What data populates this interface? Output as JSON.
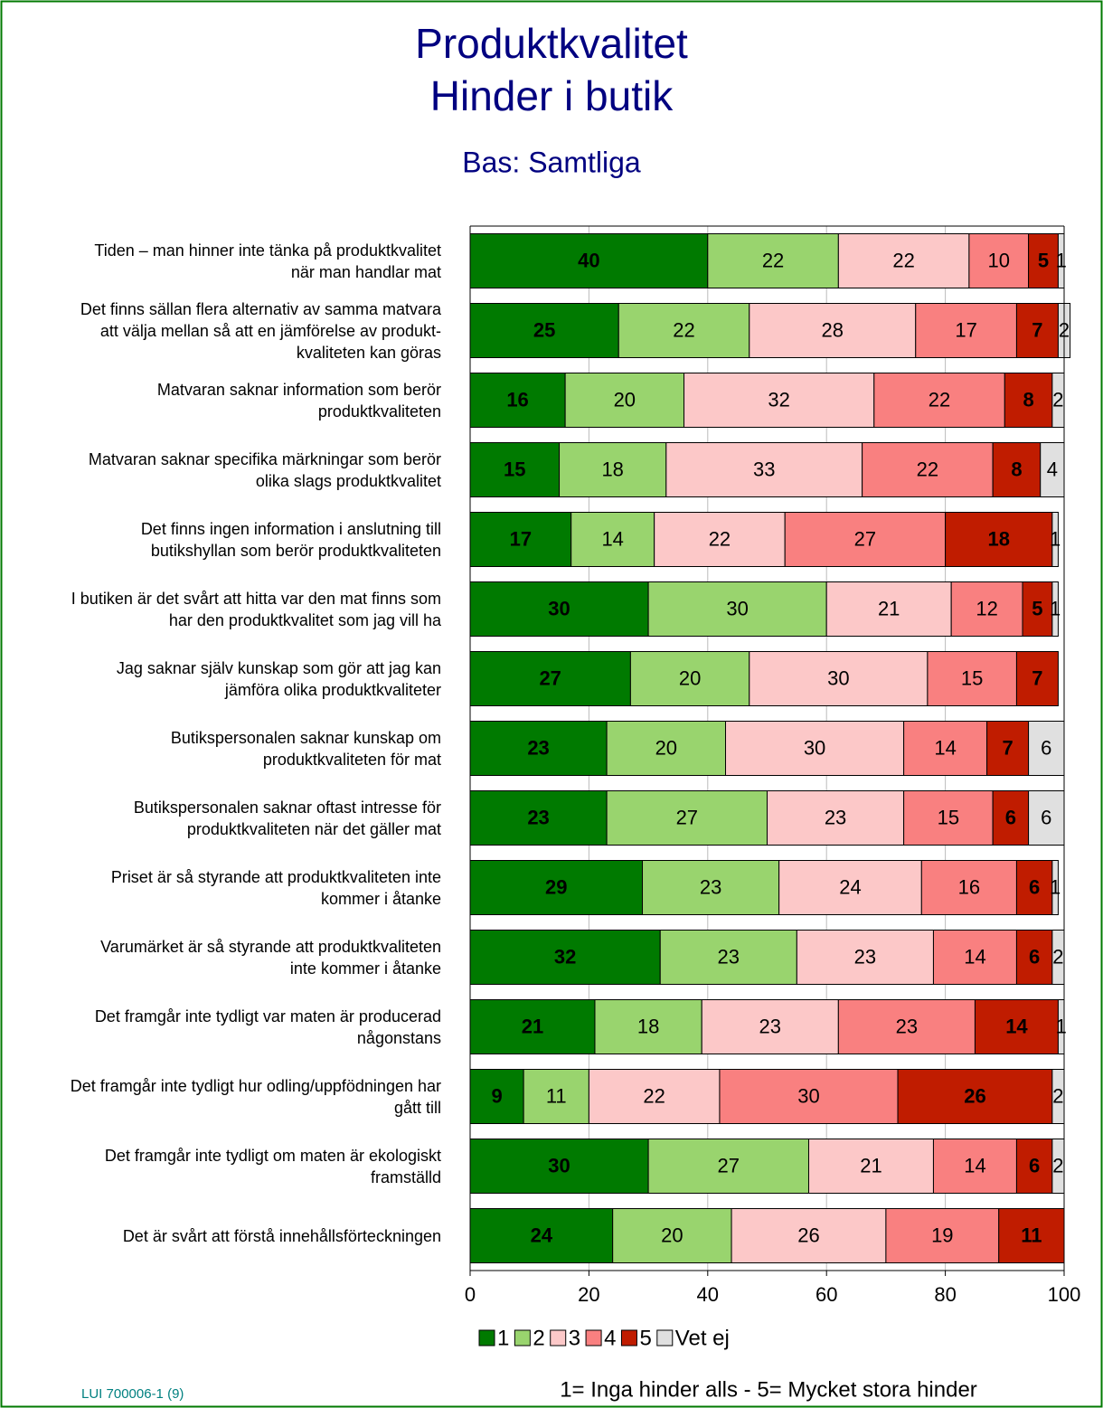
{
  "chart_data": {
    "type": "stacked-barh",
    "title": "Produktkvalitet",
    "title2": "Hinder i butik",
    "subtitle": "Bas: Samtliga",
    "note": "1= Inga hinder alls - 5= Mycket stora hinder",
    "footer": "LUI 700006-1 (9)",
    "categories": [
      "Tiden – man hinner inte tänka på produktkvalitet\nnär man handlar mat",
      "Det finns sällan flera alternativ av samma matvara\natt välja mellan så att en jämförelse av produkt-\nkvaliteten kan göras",
      "Matvaran saknar information som berör\nproduktkvaliteten",
      "Matvaran saknar specifika märkningar som berör\nolika slags produktkvalitet",
      "Det finns ingen information i anslutning till\nbutikshyllan som berör produktkvaliteten",
      "I butiken är det svårt att hitta var den mat finns som\nhar den produktkvalitet som jag vill ha",
      "Jag saknar själv kunskap som gör att jag kan\njämföra olika produktkvaliteter",
      "Butikspersonalen saknar kunskap om\nproduktkvaliteten för mat",
      "Butikspersonalen saknar oftast intresse för\nproduktkvaliteten när det gäller mat",
      "Priset är så styrande att produktkvaliteten inte\nkommer i åtanke",
      "Varumärket är så styrande att produktkvaliteten\ninte kommer i åtanke",
      "Det framgår inte tydligt var maten är producerad\nnågonstans",
      "Det framgår inte tydligt hur odling/uppfödningen har\ngått till",
      "Det framgår inte tydligt om maten är ekologiskt\nframställd",
      "Det är svårt att förstå innehållsförteckningen"
    ],
    "series": [
      {
        "name": "1",
        "color": "#007a00",
        "values": [
          40,
          25,
          16,
          15,
          17,
          30,
          27,
          23,
          23,
          29,
          32,
          21,
          9,
          30,
          24
        ]
      },
      {
        "name": "2",
        "color": "#99d46e",
        "values": [
          22,
          22,
          20,
          18,
          14,
          30,
          20,
          20,
          27,
          23,
          23,
          18,
          11,
          27,
          20
        ]
      },
      {
        "name": "3",
        "color": "#fcc8c8",
        "values": [
          22,
          28,
          32,
          33,
          22,
          21,
          30,
          30,
          23,
          24,
          23,
          23,
          22,
          21,
          26
        ]
      },
      {
        "name": "4",
        "color": "#f98080",
        "values": [
          10,
          17,
          22,
          22,
          27,
          12,
          15,
          14,
          15,
          16,
          14,
          23,
          30,
          14,
          19
        ]
      },
      {
        "name": "5",
        "color": "#c01c00",
        "values": [
          5,
          7,
          8,
          8,
          18,
          5,
          7,
          7,
          6,
          6,
          6,
          14,
          26,
          6,
          11
        ]
      },
      {
        "name": "Vet ej",
        "color": "#e0e0e0",
        "values": [
          1,
          2,
          2,
          4,
          1,
          1,
          null,
          6,
          6,
          1,
          2,
          1,
          2,
          2,
          null
        ]
      }
    ],
    "xlim": [
      0,
      100
    ],
    "xticks": [
      0,
      20,
      40,
      60,
      80,
      100
    ],
    "grid": true
  }
}
